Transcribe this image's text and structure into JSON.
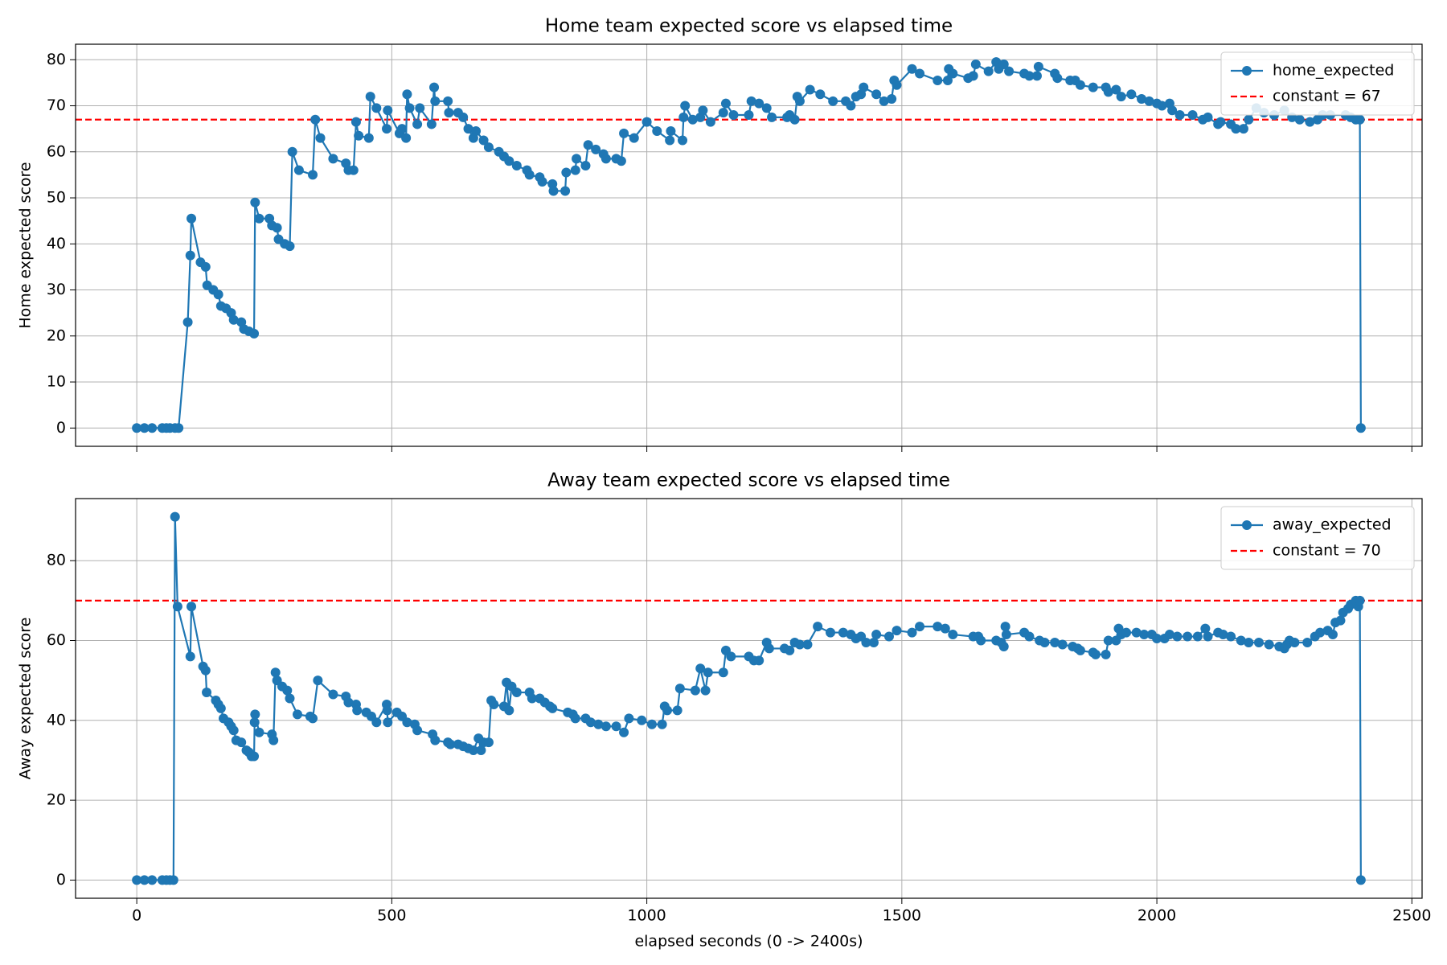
{
  "chart_data": [
    {
      "type": "line",
      "title": "Home team expected score vs elapsed time",
      "ylabel": "Home expected score",
      "x": [
        0,
        15,
        30,
        50,
        58,
        65,
        75,
        82,
        100,
        105,
        107,
        125,
        135,
        138,
        150,
        160,
        165,
        175,
        185,
        190,
        205,
        210,
        220,
        230,
        232,
        240,
        260,
        265,
        275,
        278,
        290,
        300,
        305,
        318,
        345,
        350,
        360,
        385,
        410,
        415,
        425,
        430,
        435,
        455,
        458,
        470,
        490,
        492,
        515,
        520,
        528,
        530,
        535,
        550,
        555,
        578,
        583,
        585,
        610,
        612,
        630,
        640,
        650,
        660,
        665,
        680,
        690,
        710,
        720,
        730,
        745,
        765,
        770,
        790,
        795,
        815,
        817,
        840,
        842,
        860,
        862,
        880,
        885,
        900,
        915,
        920,
        940,
        950,
        955,
        975,
        1000,
        1020,
        1045,
        1047,
        1070,
        1072,
        1075,
        1090,
        1105,
        1110,
        1125,
        1150,
        1155,
        1170,
        1200,
        1205,
        1220,
        1235,
        1245,
        1275,
        1280,
        1290,
        1295,
        1300,
        1320,
        1340,
        1365,
        1390,
        1400,
        1410,
        1420,
        1425,
        1450,
        1465,
        1480,
        1485,
        1490,
        1520,
        1535,
        1570,
        1590,
        1592,
        1600,
        1630,
        1640,
        1645,
        1670,
        1685,
        1690,
        1700,
        1710,
        1740,
        1750,
        1765,
        1768,
        1800,
        1805,
        1830,
        1840,
        1850,
        1875,
        1900,
        1905,
        1920,
        1930,
        1950,
        1970,
        1985,
        2000,
        2010,
        2025,
        2030,
        2045,
        2070,
        2090,
        2100,
        2120,
        2125,
        2145,
        2155,
        2170,
        2180,
        2195,
        2210,
        2230,
        2250,
        2265,
        2280,
        2300,
        2315,
        2325,
        2340,
        2370,
        2380,
        2390,
        2398,
        2400
      ],
      "series": [
        {
          "name": "home_expected",
          "color": "#1f77b4",
          "values": [
            0,
            0,
            0,
            0,
            0,
            0,
            0,
            0,
            23,
            37.5,
            45.5,
            36,
            35,
            31,
            30,
            29,
            26.5,
            26,
            25,
            23.5,
            23,
            21.5,
            21,
            20.5,
            49,
            45.5,
            45.5,
            44,
            43.5,
            41,
            40,
            39.5,
            60,
            56,
            55,
            67,
            63,
            58.5,
            57.5,
            56,
            56,
            66.5,
            63.5,
            63,
            72,
            69.5,
            65,
            69,
            64,
            65,
            63,
            72.5,
            69.5,
            66,
            69.5,
            66,
            74,
            71,
            71,
            68.5,
            68.5,
            67.5,
            65,
            63,
            64.5,
            62.5,
            61,
            60,
            59,
            58,
            57,
            56,
            55,
            54.5,
            53.5,
            53,
            51.5,
            51.5,
            55.5,
            56,
            58.5,
            57,
            61.5,
            60.5,
            59.5,
            58.5,
            58.5,
            58,
            64,
            63,
            66.5,
            64.5,
            62.5,
            64.5,
            62.5,
            67.5,
            70,
            67,
            67.5,
            69,
            66.5,
            68.5,
            70.5,
            68,
            68,
            71,
            70.5,
            69.5,
            67.5,
            67.5,
            68,
            67,
            72,
            71,
            73.5,
            72.5,
            71,
            71,
            70,
            72,
            72.5,
            74,
            72.5,
            71,
            71.5,
            75.5,
            74.5,
            78,
            77,
            75.5,
            75.5,
            78,
            77,
            76,
            76.5,
            79,
            77.5,
            79.5,
            78,
            79,
            77.5,
            77,
            76.5,
            76.5,
            78.5,
            77,
            76,
            75.5,
            75.5,
            74.5,
            74,
            74,
            73,
            73.5,
            72,
            72.5,
            71.5,
            71,
            70.5,
            70,
            70.5,
            69,
            68,
            68,
            67,
            67.5,
            66,
            66.5,
            66,
            65,
            65,
            67,
            69.5,
            68.5,
            68,
            69,
            67.5,
            67,
            66.5,
            67,
            68,
            68,
            68,
            67.5,
            67,
            67,
            0
          ]
        }
      ],
      "reference_lines": [
        {
          "label": "constant = 67",
          "value": 67,
          "color": "#ff0000"
        }
      ],
      "xlim": [
        -120,
        2520
      ],
      "xticks": [
        0,
        500,
        1000,
        1500,
        2000,
        2500
      ],
      "show_xticklabels": false,
      "ylim": [
        -3.97,
        83.37
      ],
      "yticks": [
        0,
        10,
        20,
        30,
        40,
        50,
        60,
        70,
        80
      ],
      "grid": true,
      "legend": "upper right"
    },
    {
      "type": "line",
      "title": "Away team expected score vs elapsed time",
      "ylabel": "Away expected score",
      "xlabel": "elapsed seconds (0 -> 2400s)",
      "x": [
        0,
        15,
        30,
        50,
        58,
        65,
        72,
        75,
        80,
        105,
        107,
        130,
        135,
        137,
        155,
        160,
        165,
        170,
        180,
        185,
        190,
        195,
        205,
        215,
        220,
        225,
        230,
        231,
        232,
        240,
        265,
        268,
        272,
        275,
        285,
        295,
        300,
        315,
        340,
        345,
        355,
        385,
        410,
        415,
        430,
        432,
        450,
        460,
        470,
        490,
        491,
        492,
        510,
        520,
        530,
        545,
        550,
        580,
        585,
        610,
        615,
        630,
        640,
        650,
        660,
        670,
        675,
        680,
        690,
        695,
        700,
        720,
        725,
        730,
        735,
        745,
        770,
        775,
        790,
        800,
        810,
        815,
        845,
        855,
        860,
        880,
        890,
        905,
        920,
        940,
        955,
        965,
        990,
        1010,
        1030,
        1035,
        1040,
        1060,
        1065,
        1095,
        1105,
        1115,
        1120,
        1150,
        1155,
        1165,
        1200,
        1210,
        1220,
        1235,
        1240,
        1270,
        1280,
        1290,
        1300,
        1315,
        1335,
        1360,
        1385,
        1400,
        1410,
        1420,
        1430,
        1445,
        1450,
        1475,
        1490,
        1520,
        1535,
        1570,
        1585,
        1600,
        1640,
        1650,
        1655,
        1685,
        1695,
        1700,
        1703,
        1705,
        1740,
        1750,
        1770,
        1780,
        1800,
        1815,
        1835,
        1845,
        1850,
        1875,
        1880,
        1900,
        1905,
        1920,
        1925,
        1930,
        1940,
        1960,
        1975,
        1990,
        2000,
        2015,
        2025,
        2040,
        2060,
        2080,
        2095,
        2100,
        2120,
        2130,
        2145,
        2165,
        2180,
        2200,
        2220,
        2240,
        2250,
        2255,
        2260,
        2270,
        2295,
        2310,
        2320,
        2335,
        2345,
        2350,
        2360,
        2365,
        2375,
        2380,
        2390,
        2395,
        2398,
        2400
      ],
      "series": [
        {
          "name": "away_expected",
          "color": "#1f77b4",
          "values": [
            0,
            0,
            0,
            0,
            0,
            0,
            0,
            91,
            68.5,
            56,
            68.5,
            53.5,
            52.5,
            47,
            45,
            44,
            43,
            40.5,
            39.5,
            38.5,
            37.5,
            35,
            34.5,
            32.5,
            32,
            31,
            31,
            39.5,
            41.5,
            37,
            36.5,
            35,
            52,
            50,
            48.5,
            47.5,
            45.5,
            41.5,
            41,
            40.5,
            50,
            46.5,
            46,
            44.5,
            44,
            42.5,
            42,
            41,
            39.5,
            44,
            42.5,
            39.5,
            42,
            41,
            39.5,
            39,
            37.5,
            36.5,
            35,
            34.5,
            34,
            34,
            33.5,
            33,
            32.5,
            35.5,
            32.5,
            34.5,
            34.5,
            45,
            44,
            43.5,
            49.5,
            42.5,
            48.5,
            47,
            47,
            45.5,
            45.5,
            44.5,
            43.5,
            43,
            42,
            41.5,
            40.5,
            40.5,
            39.5,
            39,
            38.5,
            38.5,
            37,
            40.5,
            40,
            39,
            39,
            43.5,
            42.5,
            42.5,
            48,
            47.5,
            53,
            47.5,
            52,
            52,
            57.5,
            56,
            56,
            55,
            55,
            59.5,
            58,
            58,
            57.5,
            59.5,
            59,
            59,
            63.5,
            62,
            62,
            61.5,
            60.5,
            61,
            59.5,
            59.5,
            61.5,
            61,
            62.5,
            62,
            63.5,
            63.5,
            63,
            61.5,
            61,
            61,
            60,
            60,
            59.5,
            58.5,
            63.5,
            61.5,
            62,
            61,
            60,
            59.5,
            59.5,
            59,
            58.5,
            58,
            57.5,
            57,
            56.5,
            56.5,
            60,
            60,
            63,
            61.5,
            62,
            62,
            61.5,
            61.5,
            60.5,
            60.5,
            61.5,
            61,
            61,
            61,
            63,
            61,
            62,
            61.5,
            61,
            60,
            59.5,
            59.5,
            59,
            58.5,
            58,
            59,
            60,
            59.5,
            59.5,
            61,
            62,
            62.5,
            61.5,
            64.5,
            65,
            67,
            68,
            69,
            70,
            68.5,
            70,
            0
          ]
        }
      ],
      "reference_lines": [
        {
          "label": "constant = 70",
          "value": 70,
          "color": "#ff0000"
        }
      ],
      "xlim": [
        -120,
        2520
      ],
      "xticks": [
        0,
        500,
        1000,
        1500,
        2000,
        2500
      ],
      "show_xticklabels": true,
      "ylim": [
        -4.55,
        95.55
      ],
      "yticks": [
        0,
        20,
        40,
        60,
        80
      ],
      "grid": true,
      "legend": "upper right"
    }
  ]
}
